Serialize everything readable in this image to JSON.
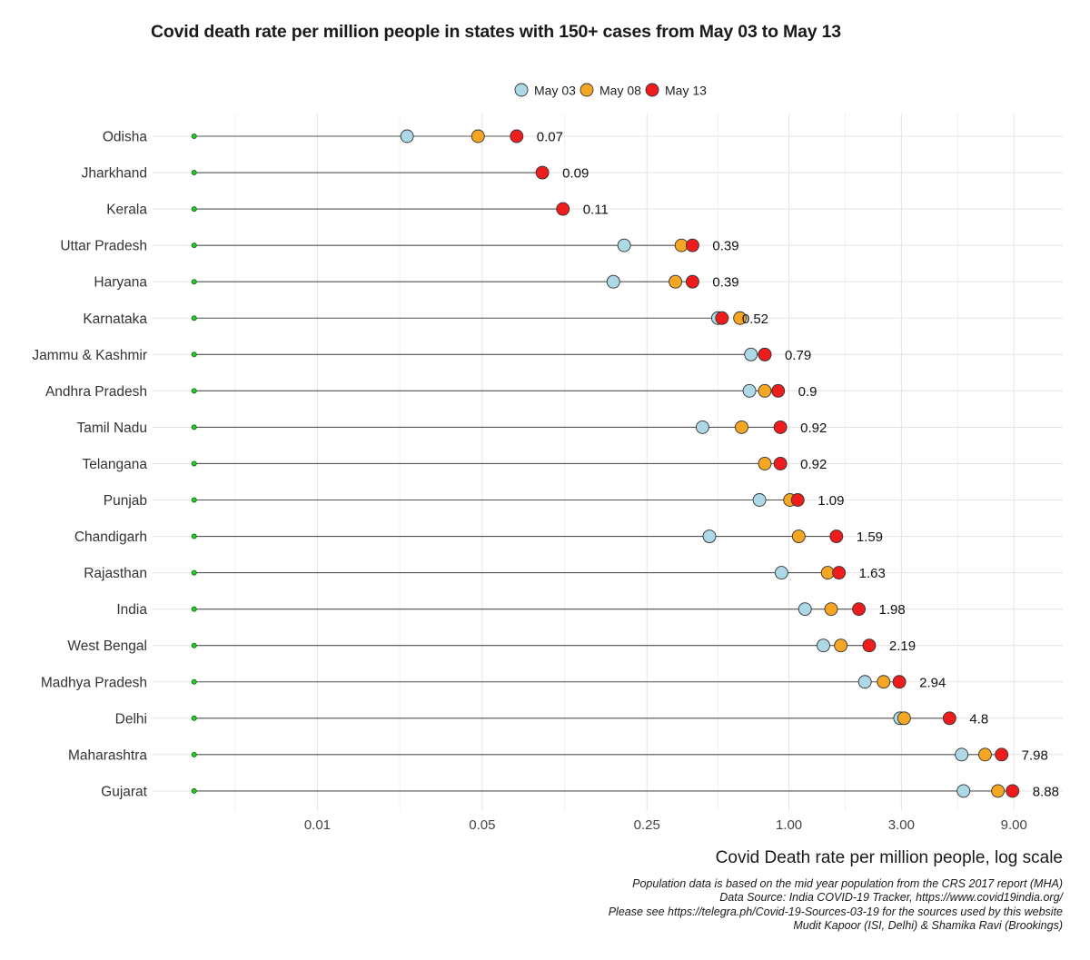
{
  "title": "Covid death rate per million people in states with 150+ cases from May 03 to May 13",
  "xlabel": "Covid Death rate per million people, log scale",
  "caption": [
    "Population data is based on the mid year population from the CRS 2017 report (MHA)",
    "Data Source: India COVID-19 Tracker, https://www.covid19india.org/",
    "Please see https://telegra.ph/Covid-19-Sources-03-19 for the sources used by this website",
    "Mudit Kapoor (ISI, Delhi) & Shamika Ravi (Brookings)"
  ],
  "colors": {
    "may03": "#add8e6",
    "may08": "#f5a623",
    "may13": "#ee1c1c",
    "start": "#22cc22",
    "segment": "#555555",
    "grid": "#e6e6e6"
  },
  "chart_data": {
    "type": "dot",
    "x_scale": "log",
    "xlim": [
      0.002,
      14.5
    ],
    "x_ticks": [
      0.01,
      0.05,
      0.25,
      1.0,
      3.0,
      9.0
    ],
    "x_tick_labels": [
      "0.01",
      "0.05",
      "0.25",
      "1.00",
      "3.00",
      "9.00"
    ],
    "segment_start": 0.003,
    "legend": [
      "May 03",
      "May 08",
      "May 13"
    ],
    "legend_position": "top",
    "categories": [
      "Odisha",
      "Jharkhand",
      "Kerala",
      "Uttar Pradesh",
      "Haryana",
      "Karnataka",
      "Jammu & Kashmir",
      "Andhra Pradesh",
      "Tamil Nadu",
      "Telangana",
      "Punjab",
      "Chandigarh",
      "Rajasthan",
      "India",
      "West Bengal",
      "Madhya Pradesh",
      "Delhi",
      "Maharashtra",
      "Gujarat"
    ],
    "series": [
      {
        "name": "May 03",
        "values": [
          0.024,
          null,
          null,
          0.2,
          0.18,
          0.5,
          0.69,
          0.68,
          0.43,
          null,
          0.75,
          0.46,
          0.93,
          1.17,
          1.4,
          2.1,
          2.96,
          5.4,
          5.5
        ]
      },
      {
        "name": "May 08",
        "values": [
          0.048,
          null,
          null,
          0.35,
          0.33,
          0.62,
          0.79,
          0.79,
          0.63,
          0.79,
          1.01,
          1.1,
          1.46,
          1.51,
          1.66,
          2.52,
          3.08,
          6.79,
          7.7
        ]
      },
      {
        "name": "May 13",
        "values": [
          0.07,
          0.09,
          0.11,
          0.39,
          0.39,
          0.52,
          0.79,
          0.9,
          0.92,
          0.92,
          1.09,
          1.59,
          1.63,
          1.98,
          2.19,
          2.94,
          4.8,
          7.98,
          8.88
        ]
      }
    ],
    "value_labels": [
      "0.07",
      "0.09",
      "0.11",
      "0.39",
      "0.39",
      "0.52",
      "0.79",
      "0.9",
      "0.92",
      "0.92",
      "1.09",
      "1.59",
      "1.63",
      "1.98",
      "2.19",
      "2.94",
      "4.8",
      "7.98",
      "8.88"
    ]
  }
}
